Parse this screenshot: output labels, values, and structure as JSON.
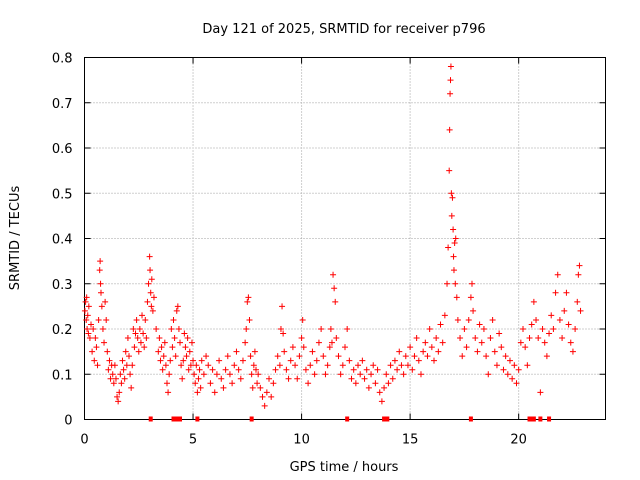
{
  "chart_data": {
    "type": "scatter",
    "title": "Day 121 of 2025, SRMTID for receiver p796",
    "xlabel": "GPS time / hours",
    "ylabel": "SRMTID / TECUs",
    "xlim": [
      0,
      24
    ],
    "ylim": [
      0,
      0.8
    ],
    "xticks": [
      0,
      5,
      10,
      15,
      20
    ],
    "yticks": [
      0,
      0.1,
      0.2,
      0.3,
      0.4,
      0.5,
      0.6,
      0.7,
      0.8
    ],
    "xtick_labels": [
      "0",
      "5",
      "10",
      "15",
      "20"
    ],
    "ytick_labels": [
      "0",
      "0.1",
      "0.2",
      "0.3",
      "0.4",
      "0.5",
      "0.6",
      "0.7",
      "0.8"
    ],
    "grid": true,
    "marker": "plus",
    "color": "#ff0000",
    "zero_points_x": [
      3.05,
      4.1,
      4.25,
      4.4,
      5.2,
      7.7,
      12.1,
      13.8,
      13.95,
      17.8,
      20.5,
      20.6,
      20.7,
      21.0,
      21.4
    ],
    "series": [
      {
        "name": "p796",
        "points": [
          [
            0.02,
            0.24
          ],
          [
            0.05,
            0.26
          ],
          [
            0.08,
            0.22
          ],
          [
            0.1,
            0.27
          ],
          [
            0.12,
            0.2
          ],
          [
            0.15,
            0.23
          ],
          [
            0.18,
            0.19
          ],
          [
            0.2,
            0.25
          ],
          [
            0.25,
            0.18
          ],
          [
            0.3,
            0.21
          ],
          [
            0.35,
            0.15
          ],
          [
            0.4,
            0.2
          ],
          [
            0.45,
            0.13
          ],
          [
            0.5,
            0.18
          ],
          [
            0.55,
            0.16
          ],
          [
            0.6,
            0.12
          ],
          [
            0.65,
            0.22
          ],
          [
            0.7,
            0.33
          ],
          [
            0.72,
            0.35
          ],
          [
            0.74,
            0.3
          ],
          [
            0.76,
            0.28
          ],
          [
            0.8,
            0.25
          ],
          [
            0.85,
            0.2
          ],
          [
            0.9,
            0.17
          ],
          [
            0.95,
            0.26
          ],
          [
            1.0,
            0.22
          ],
          [
            1.05,
            0.15
          ],
          [
            1.1,
            0.11
          ],
          [
            1.15,
            0.13
          ],
          [
            1.2,
            0.09
          ],
          [
            1.25,
            0.12
          ],
          [
            1.3,
            0.1
          ],
          [
            1.35,
            0.08
          ],
          [
            1.4,
            0.12
          ],
          [
            1.45,
            0.09
          ],
          [
            1.5,
            0.05
          ],
          [
            1.55,
            0.04
          ],
          [
            1.6,
            0.06
          ],
          [
            1.65,
            0.1
          ],
          [
            1.7,
            0.08
          ],
          [
            1.75,
            0.13
          ],
          [
            1.8,
            0.11
          ],
          [
            1.85,
            0.09
          ],
          [
            1.9,
            0.15
          ],
          [
            1.95,
            0.12
          ],
          [
            2.0,
            0.18
          ],
          [
            2.05,
            0.14
          ],
          [
            2.1,
            0.1
          ],
          [
            2.15,
            0.07
          ],
          [
            2.2,
            0.12
          ],
          [
            2.25,
            0.2
          ],
          [
            2.3,
            0.16
          ],
          [
            2.35,
            0.19
          ],
          [
            2.4,
            0.22
          ],
          [
            2.45,
            0.18
          ],
          [
            2.5,
            0.15
          ],
          [
            2.55,
            0.2
          ],
          [
            2.6,
            0.17
          ],
          [
            2.65,
            0.23
          ],
          [
            2.7,
            0.19
          ],
          [
            2.75,
            0.16
          ],
          [
            2.8,
            0.22
          ],
          [
            2.85,
            0.18
          ],
          [
            2.9,
            0.26
          ],
          [
            2.95,
            0.3
          ],
          [
            3.0,
            0.36
          ],
          [
            3.02,
            0.33
          ],
          [
            3.05,
            0.28
          ],
          [
            3.08,
            0.25
          ],
          [
            3.1,
            0.31
          ],
          [
            3.15,
            0.24
          ],
          [
            3.2,
            0.27
          ],
          [
            3.3,
            0.2
          ],
          [
            3.4,
            0.15
          ],
          [
            3.45,
            0.18
          ],
          [
            3.5,
            0.13
          ],
          [
            3.55,
            0.16
          ],
          [
            3.6,
            0.11
          ],
          [
            3.65,
            0.14
          ],
          [
            3.7,
            0.17
          ],
          [
            3.75,
            0.12
          ],
          [
            3.8,
            0.08
          ],
          [
            3.85,
            0.06
          ],
          [
            3.9,
            0.1
          ],
          [
            3.95,
            0.13
          ],
          [
            4.0,
            0.2
          ],
          [
            4.05,
            0.16
          ],
          [
            4.1,
            0.22
          ],
          [
            4.15,
            0.18
          ],
          [
            4.2,
            0.14
          ],
          [
            4.25,
            0.24
          ],
          [
            4.3,
            0.25
          ],
          [
            4.35,
            0.2
          ],
          [
            4.4,
            0.17
          ],
          [
            4.45,
            0.12
          ],
          [
            4.5,
            0.09
          ],
          [
            4.55,
            0.13
          ],
          [
            4.6,
            0.19
          ],
          [
            4.65,
            0.16
          ],
          [
            4.7,
            0.14
          ],
          [
            4.75,
            0.18
          ],
          [
            4.8,
            0.11
          ],
          [
            4.85,
            0.15
          ],
          [
            4.9,
            0.12
          ],
          [
            4.95,
            0.17
          ],
          [
            5.0,
            0.13
          ],
          [
            5.05,
            0.1
          ],
          [
            5.1,
            0.08
          ],
          [
            5.15,
            0.12
          ],
          [
            5.2,
            0.06
          ],
          [
            5.25,
            0.09
          ],
          [
            5.3,
            0.11
          ],
          [
            5.35,
            0.07
          ],
          [
            5.4,
            0.13
          ],
          [
            5.5,
            0.1
          ],
          [
            5.6,
            0.14
          ],
          [
            5.7,
            0.12
          ],
          [
            5.8,
            0.08
          ],
          [
            5.9,
            0.11
          ],
          [
            6.0,
            0.06
          ],
          [
            6.1,
            0.1
          ],
          [
            6.2,
            0.13
          ],
          [
            6.3,
            0.09
          ],
          [
            6.4,
            0.07
          ],
          [
            6.5,
            0.11
          ],
          [
            6.6,
            0.14
          ],
          [
            6.7,
            0.1
          ],
          [
            6.8,
            0.08
          ],
          [
            6.9,
            0.12
          ],
          [
            7.0,
            0.15
          ],
          [
            7.1,
            0.11
          ],
          [
            7.2,
            0.09
          ],
          [
            7.3,
            0.13
          ],
          [
            7.4,
            0.17
          ],
          [
            7.45,
            0.2
          ],
          [
            7.5,
            0.26
          ],
          [
            7.55,
            0.27
          ],
          [
            7.6,
            0.22
          ],
          [
            7.65,
            0.14
          ],
          [
            7.7,
            0.1
          ],
          [
            7.75,
            0.07
          ],
          [
            7.8,
            0.12
          ],
          [
            7.85,
            0.15
          ],
          [
            7.9,
            0.11
          ],
          [
            7.95,
            0.08
          ],
          [
            8.0,
            0.1
          ],
          [
            8.1,
            0.07
          ],
          [
            8.2,
            0.05
          ],
          [
            8.3,
            0.03
          ],
          [
            8.4,
            0.06
          ],
          [
            8.5,
            0.09
          ],
          [
            8.6,
            0.05
          ],
          [
            8.7,
            0.08
          ],
          [
            8.8,
            0.11
          ],
          [
            8.9,
            0.14
          ],
          [
            9.0,
            0.12
          ],
          [
            9.05,
            0.2
          ],
          [
            9.1,
            0.25
          ],
          [
            9.15,
            0.19
          ],
          [
            9.2,
            0.15
          ],
          [
            9.3,
            0.11
          ],
          [
            9.4,
            0.09
          ],
          [
            9.5,
            0.13
          ],
          [
            9.6,
            0.16
          ],
          [
            9.7,
            0.12
          ],
          [
            9.8,
            0.09
          ],
          [
            9.9,
            0.14
          ],
          [
            10.0,
            0.18
          ],
          [
            10.05,
            0.22
          ],
          [
            10.1,
            0.16
          ],
          [
            10.2,
            0.11
          ],
          [
            10.3,
            0.08
          ],
          [
            10.4,
            0.12
          ],
          [
            10.5,
            0.15
          ],
          [
            10.6,
            0.1
          ],
          [
            10.7,
            0.13
          ],
          [
            10.8,
            0.17
          ],
          [
            10.9,
            0.2
          ],
          [
            11.0,
            0.14
          ],
          [
            11.1,
            0.1
          ],
          [
            11.2,
            0.12
          ],
          [
            11.3,
            0.16
          ],
          [
            11.35,
            0.2
          ],
          [
            11.4,
            0.17
          ],
          [
            11.45,
            0.32
          ],
          [
            11.5,
            0.29
          ],
          [
            11.55,
            0.26
          ],
          [
            11.6,
            0.18
          ],
          [
            11.7,
            0.14
          ],
          [
            11.8,
            0.1
          ],
          [
            11.9,
            0.12
          ],
          [
            12.0,
            0.16
          ],
          [
            12.1,
            0.2
          ],
          [
            12.2,
            0.13
          ],
          [
            12.3,
            0.09
          ],
          [
            12.4,
            0.11
          ],
          [
            12.5,
            0.08
          ],
          [
            12.6,
            0.12
          ],
          [
            12.7,
            0.1
          ],
          [
            12.8,
            0.13
          ],
          [
            12.9,
            0.09
          ],
          [
            13.0,
            0.11
          ],
          [
            13.1,
            0.07
          ],
          [
            13.2,
            0.1
          ],
          [
            13.3,
            0.12
          ],
          [
            13.4,
            0.08
          ],
          [
            13.5,
            0.11
          ],
          [
            13.6,
            0.06
          ],
          [
            13.7,
            0.04
          ],
          [
            13.8,
            0.07
          ],
          [
            13.9,
            0.1
          ],
          [
            14.0,
            0.08
          ],
          [
            14.1,
            0.12
          ],
          [
            14.2,
            0.09
          ],
          [
            14.3,
            0.13
          ],
          [
            14.4,
            0.11
          ],
          [
            14.5,
            0.15
          ],
          [
            14.6,
            0.12
          ],
          [
            14.7,
            0.1
          ],
          [
            14.8,
            0.14
          ],
          [
            14.9,
            0.12
          ],
          [
            15.0,
            0.16
          ],
          [
            15.1,
            0.11
          ],
          [
            15.2,
            0.14
          ],
          [
            15.3,
            0.18
          ],
          [
            15.4,
            0.13
          ],
          [
            15.5,
            0.1
          ],
          [
            15.6,
            0.15
          ],
          [
            15.7,
            0.17
          ],
          [
            15.8,
            0.14
          ],
          [
            15.9,
            0.2
          ],
          [
            16.0,
            0.16
          ],
          [
            16.1,
            0.13
          ],
          [
            16.2,
            0.18
          ],
          [
            16.3,
            0.15
          ],
          [
            16.4,
            0.21
          ],
          [
            16.5,
            0.17
          ],
          [
            16.6,
            0.23
          ],
          [
            16.7,
            0.3
          ],
          [
            16.75,
            0.38
          ],
          [
            16.8,
            0.55
          ],
          [
            16.82,
            0.64
          ],
          [
            16.84,
            0.72
          ],
          [
            16.86,
            0.75
          ],
          [
            16.88,
            0.78
          ],
          [
            16.9,
            0.5
          ],
          [
            16.92,
            0.45
          ],
          [
            16.95,
            0.49
          ],
          [
            16.98,
            0.42
          ],
          [
            17.0,
            0.36
          ],
          [
            17.02,
            0.33
          ],
          [
            17.05,
            0.39
          ],
          [
            17.08,
            0.3
          ],
          [
            17.1,
            0.4
          ],
          [
            17.15,
            0.27
          ],
          [
            17.2,
            0.22
          ],
          [
            17.3,
            0.18
          ],
          [
            17.4,
            0.14
          ],
          [
            17.5,
            0.2
          ],
          [
            17.6,
            0.16
          ],
          [
            17.7,
            0.22
          ],
          [
            17.8,
            0.27
          ],
          [
            17.85,
            0.3
          ],
          [
            17.9,
            0.24
          ],
          [
            18.0,
            0.18
          ],
          [
            18.1,
            0.15
          ],
          [
            18.2,
            0.21
          ],
          [
            18.3,
            0.17
          ],
          [
            18.4,
            0.2
          ],
          [
            18.5,
            0.14
          ],
          [
            18.6,
            0.1
          ],
          [
            18.7,
            0.18
          ],
          [
            18.8,
            0.22
          ],
          [
            18.9,
            0.15
          ],
          [
            19.0,
            0.12
          ],
          [
            19.1,
            0.19
          ],
          [
            19.2,
            0.16
          ],
          [
            19.3,
            0.11
          ],
          [
            19.4,
            0.14
          ],
          [
            19.5,
            0.1
          ],
          [
            19.6,
            0.13
          ],
          [
            19.7,
            0.09
          ],
          [
            19.8,
            0.12
          ],
          [
            19.9,
            0.08
          ],
          [
            20.0,
            0.11
          ],
          [
            20.1,
            0.17
          ],
          [
            20.2,
            0.2
          ],
          [
            20.3,
            0.16
          ],
          [
            20.4,
            0.12
          ],
          [
            20.5,
            0.18
          ],
          [
            20.6,
            0.21
          ],
          [
            20.7,
            0.26
          ],
          [
            20.8,
            0.22
          ],
          [
            20.9,
            0.18
          ],
          [
            21.0,
            0.06
          ],
          [
            21.1,
            0.2
          ],
          [
            21.2,
            0.17
          ],
          [
            21.3,
            0.14
          ],
          [
            21.4,
            0.19
          ],
          [
            21.5,
            0.23
          ],
          [
            21.6,
            0.2
          ],
          [
            21.7,
            0.28
          ],
          [
            21.8,
            0.32
          ],
          [
            21.9,
            0.22
          ],
          [
            22.0,
            0.18
          ],
          [
            22.1,
            0.24
          ],
          [
            22.2,
            0.28
          ],
          [
            22.3,
            0.21
          ],
          [
            22.4,
            0.17
          ],
          [
            22.5,
            0.15
          ],
          [
            22.6,
            0.2
          ],
          [
            22.7,
            0.26
          ],
          [
            22.75,
            0.32
          ],
          [
            22.8,
            0.34
          ],
          [
            22.85,
            0.24
          ]
        ]
      }
    ]
  }
}
